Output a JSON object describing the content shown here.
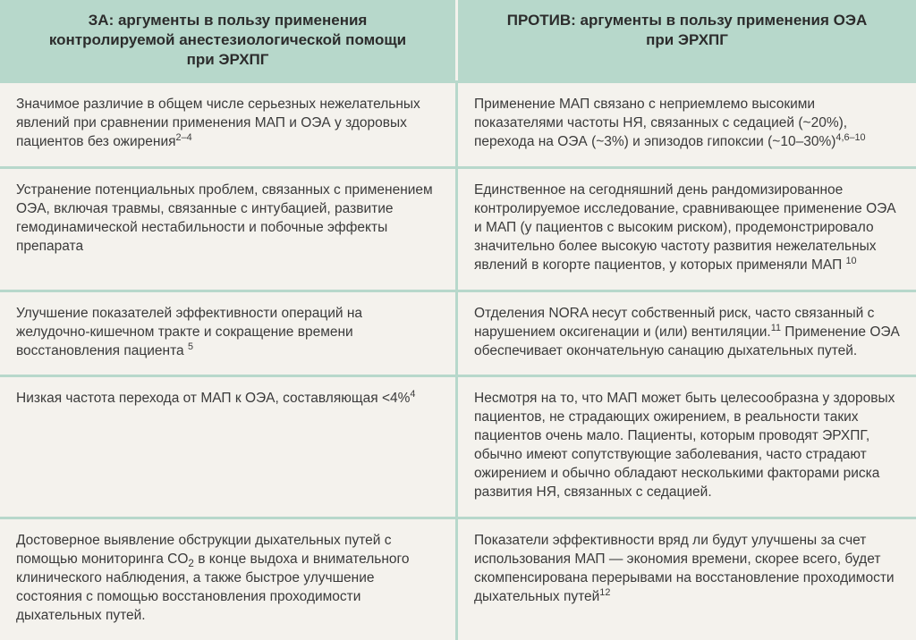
{
  "table": {
    "type": "table",
    "background_color": "#f4f2ed",
    "divider_color": "#b7d8cb",
    "header_bg": "#b7d8cb",
    "text_color": "#3a3a3a",
    "header_fontsize": 17,
    "body_fontsize": 15.5,
    "columns": [
      "ЗА: аргументы в пользу применения контролируемой анестезиологической помощи при ЭРХПГ",
      "ПРОТИВ: аргументы в пользу применения ОЭА при ЭРХПГ"
    ],
    "rows": [
      {
        "left": "Значимое различие в общем числе серьезных нежелательных явлений при сравнении применения МАП и ОЭА у здоровых пациентов без ожирения",
        "left_sup": "2–4",
        "right": "Применение МАП связано с неприемлемо высокими показателями частоты НЯ, связанных с седацией (~20%), перехода на ОЭА (~3%) и эпизодов гипоксии (~10–30%)",
        "right_sup": "4,6–10"
      },
      {
        "left": "Устранение потенциальных проблем, связанных с применением ОЭА, включая травмы, связанные с интубацией, развитие гемодинамической нестабильности и побочные эффекты препарата",
        "left_sup": "",
        "right": "Единственное на сегодняшний день рандомизированное контролируемое исследование, сравнивающее применение ОЭА и МАП (у пациентов с высоким риском), продемонстрировало значительно более высокую частоту развития нежелательных явлений в когорте пациентов, у которых применяли МАП ",
        "right_sup": "10"
      },
      {
        "left": "Улучшение показателей эффективности операций на желудочно-кишечном тракте и сокращение времени восстановления пациента ",
        "left_sup": "5",
        "right_pre": "Отделения NORA несут собственный риск, часто связанный с нарушением оксигенации и (или) вентиляции.",
        "right_sup_mid": "11",
        "right_post": " Применение ОЭА обеспечивает окончательную санацию дыхательных путей.",
        "right": "",
        "right_sup": ""
      },
      {
        "left": "Низкая частота перехода от МАП к ОЭА, составляющая <4%",
        "left_sup": "4",
        "right": "Несмотря на то, что МАП может быть целесообразна у здоровых пациентов, не страдающих ожирением, в реальности таких пациентов очень мало. Пациенты, которым проводят ЭРХПГ, обычно имеют сопутствующие заболевания, часто страдают ожирением и обычно обладают несколькими факторами риска развития НЯ, связанных с седацией.",
        "right_sup": ""
      },
      {
        "left_pre": "Достоверное выявление обструкции дыхательных путей с помощью мониторинга CO",
        "left_sub": "2",
        "left_post": " в конце выдоха и внимательного клинического наблюдения, а также быстрое улучшение состояния с помощью восстановления проходимости дыхательных путей.",
        "left": "",
        "left_sup": "",
        "right": "Показатели эффективности вряд ли будут улучшены за счет использования МАП — экономия времени, скорее всего, будет скомпенсирована перерывами на восстановление проходимости дыхательных путей",
        "right_sup": "12"
      }
    ]
  }
}
